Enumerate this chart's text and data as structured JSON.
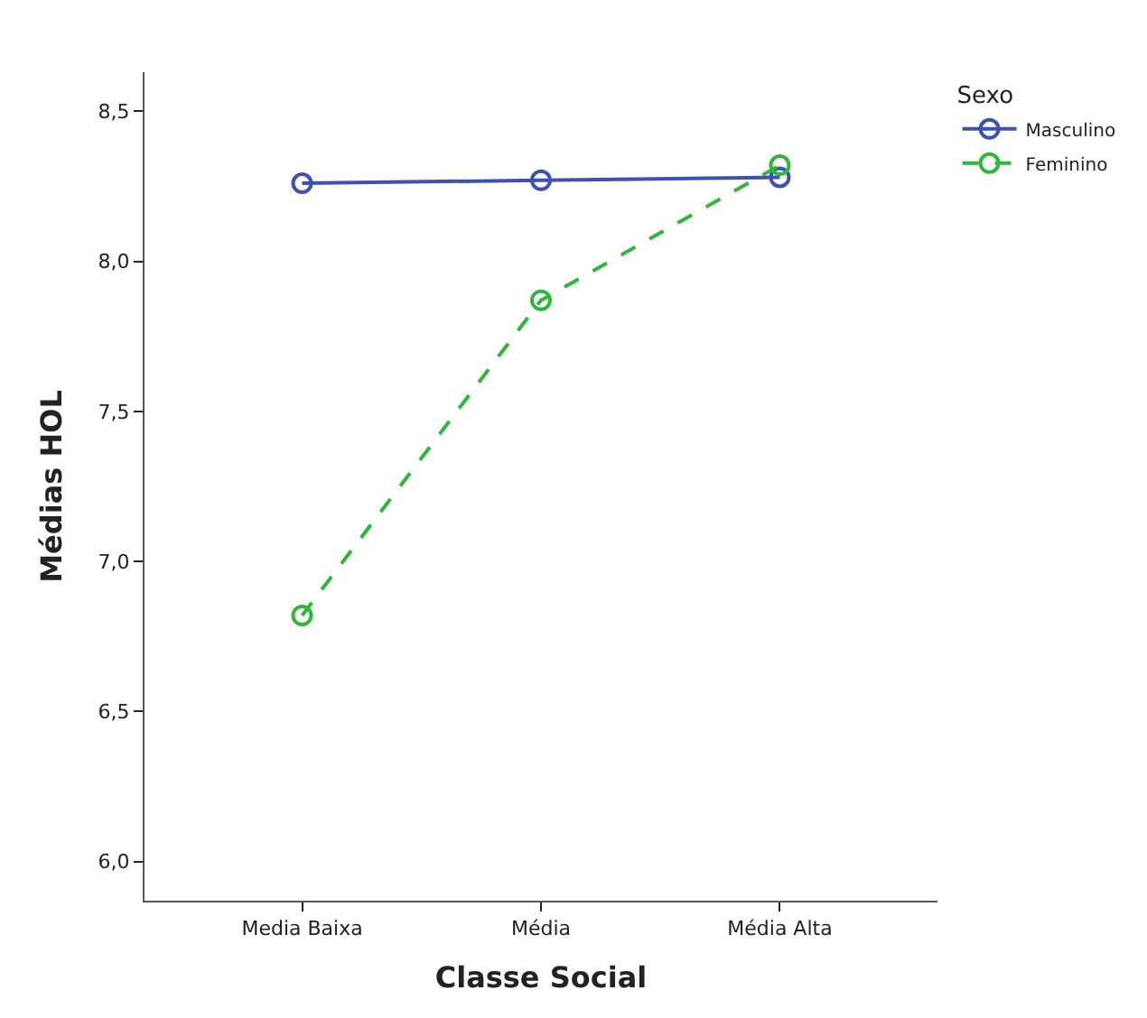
{
  "chart_data": {
    "type": "line",
    "xlabel": "Classe Social",
    "ylabel": "Médias HOL",
    "legend_title": "Sexo",
    "categories": [
      "Media Baixa",
      "Média",
      "Média Alta"
    ],
    "series": [
      {
        "name": "Masculino",
        "color": "#3f51b0",
        "values": [
          8.26,
          8.27,
          8.28
        ],
        "line_style": "solid"
      },
      {
        "name": "Feminino",
        "color": "#2eb83a",
        "values": [
          6.82,
          7.87,
          8.32
        ],
        "line_style": "dashed"
      }
    ],
    "ylim": [
      5.87,
      8.63
    ],
    "yticks": [
      {
        "value": 6.0,
        "label": "6,0"
      },
      {
        "value": 6.5,
        "label": "6,5"
      },
      {
        "value": 7.0,
        "label": "7,0"
      },
      {
        "value": 7.5,
        "label": "7,5"
      },
      {
        "value": 8.0,
        "label": "8,0"
      },
      {
        "value": 8.5,
        "label": "8,5"
      }
    ],
    "marker": "circle",
    "legend": "top right"
  }
}
